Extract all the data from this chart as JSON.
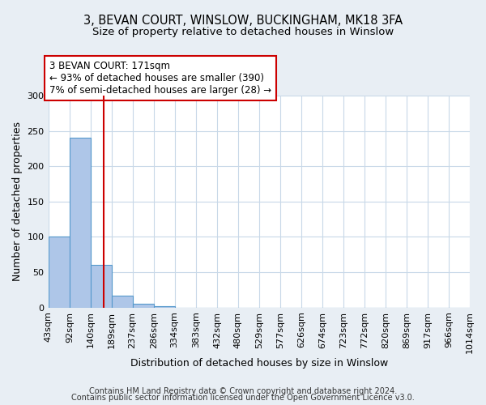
{
  "title1": "3, BEVAN COURT, WINSLOW, BUCKINGHAM, MK18 3FA",
  "title2": "Size of property relative to detached houses in Winslow",
  "xlabel": "Distribution of detached houses by size in Winslow",
  "ylabel": "Number of detached properties",
  "bin_edges": [
    43,
    92,
    140,
    189,
    237,
    286,
    334,
    383,
    432,
    480,
    529,
    577,
    626,
    674,
    723,
    772,
    820,
    869,
    917,
    966,
    1014
  ],
  "bar_heights": [
    100,
    240,
    60,
    17,
    5,
    2,
    0,
    0,
    0,
    0,
    0,
    0,
    0,
    0,
    0,
    0,
    0,
    0,
    0,
    0
  ],
  "bar_color": "#aec6e8",
  "bar_edgecolor": "#5599cc",
  "property_line_x": 171,
  "property_line_color": "#cc0000",
  "annotation_line1": "3 BEVAN COURT: 171sqm",
  "annotation_line2": "← 93% of detached houses are smaller (390)",
  "annotation_line3": "7% of semi-detached houses are larger (28) →",
  "annotation_box_edgecolor": "#cc0000",
  "annotation_box_facecolor": "#ffffff",
  "ylim": [
    0,
    300
  ],
  "yticks": [
    0,
    50,
    100,
    150,
    200,
    250,
    300
  ],
  "footer1": "Contains HM Land Registry data © Crown copyright and database right 2024.",
  "footer2": "Contains public sector information licensed under the Open Government Licence v3.0.",
  "background_color": "#e8eef4",
  "plot_background_color": "#ffffff",
  "grid_color": "#c8d8e8",
  "title_fontsize": 10.5,
  "subtitle_fontsize": 9.5,
  "axis_label_fontsize": 9,
  "tick_fontsize": 8,
  "annotation_fontsize": 8.5,
  "footer_fontsize": 7
}
